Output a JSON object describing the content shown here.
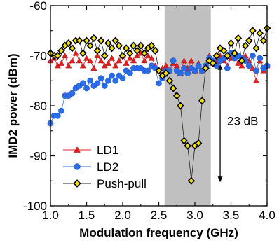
{
  "chart_data": {
    "type": "line",
    "xlabel": "Modulation frequency (GHz)",
    "ylabel": "IMD2 power (dBm)",
    "xlim": [
      1.0,
      4.0
    ],
    "ylim": [
      -100,
      -60
    ],
    "xticks": [
      "1.0",
      "1.5",
      "2.0",
      "2.5",
      "3.0",
      "3.5",
      "4.0"
    ],
    "xtick_values": [
      1.0,
      1.5,
      2.0,
      2.5,
      3.0,
      3.5,
      4.0
    ],
    "yticks": [
      "-60",
      "-70",
      "-80",
      "-90",
      "-100"
    ],
    "ytick_values": [
      -60,
      -70,
      -80,
      -90,
      -100
    ],
    "grid": false,
    "legend_position": "bottom-left",
    "shaded_region": {
      "x": [
        2.58,
        3.22
      ],
      "color": "#c0c0c0"
    },
    "annotation": {
      "text": "23 dB",
      "x": 3.35,
      "y_top": -72,
      "y_bottom": -95
    },
    "series": [
      {
        "name": "LD1",
        "color": "#e02020",
        "marker": "triangle",
        "x": [
          1.0,
          1.05,
          1.1,
          1.15,
          1.2,
          1.25,
          1.3,
          1.35,
          1.4,
          1.45,
          1.5,
          1.55,
          1.6,
          1.65,
          1.7,
          1.75,
          1.8,
          1.85,
          1.9,
          1.95,
          2.0,
          2.05,
          2.1,
          2.15,
          2.2,
          2.25,
          2.3,
          2.35,
          2.4,
          2.45,
          2.5,
          2.55,
          2.6,
          2.65,
          2.7,
          2.75,
          2.8,
          2.85,
          2.9,
          2.95,
          3.0,
          3.05,
          3.1,
          3.15,
          3.2,
          3.25,
          3.3,
          3.35,
          3.4,
          3.45,
          3.5,
          3.55,
          3.6,
          3.65,
          3.7,
          3.75,
          3.8,
          3.85,
          3.9,
          3.95,
          4.0
        ],
        "y": [
          -71,
          -70.5,
          -72,
          -71.5,
          -70,
          -72,
          -71,
          -69.5,
          -71,
          -72,
          -70.5,
          -71,
          -72.5,
          -70,
          -71,
          -72,
          -71.5,
          -70.5,
          -72,
          -71,
          -70,
          -71.5,
          -70.5,
          -71,
          -70,
          -69.5,
          -71,
          -70,
          -70.5,
          -72,
          -73,
          -72.5,
          -72,
          -73,
          -71.5,
          -72,
          -73.5,
          -71,
          -72.5,
          -71,
          -73,
          -71.5,
          -73,
          -72,
          -70,
          -71.5,
          -71,
          -70,
          -71,
          -72,
          -70.5,
          -70,
          -71.5,
          -72,
          -70,
          -71,
          -72.5,
          -75,
          -71,
          -73,
          -72
        ]
      },
      {
        "name": "LD2",
        "color": "#2a6be8",
        "marker": "circle",
        "x": [
          1.0,
          1.05,
          1.1,
          1.15,
          1.2,
          1.25,
          1.3,
          1.35,
          1.4,
          1.45,
          1.5,
          1.55,
          1.6,
          1.65,
          1.7,
          1.75,
          1.8,
          1.85,
          1.9,
          1.95,
          2.0,
          2.05,
          2.1,
          2.15,
          2.2,
          2.25,
          2.3,
          2.35,
          2.4,
          2.45,
          2.5,
          2.55,
          2.6,
          2.65,
          2.7,
          2.75,
          2.8,
          2.85,
          2.9,
          2.95,
          3.0,
          3.05,
          3.1,
          3.15,
          3.2,
          3.25,
          3.3,
          3.35,
          3.4,
          3.45,
          3.5,
          3.55,
          3.6,
          3.65,
          3.7,
          3.75,
          3.8,
          3.85,
          3.9,
          3.95,
          4.0
        ],
        "y": [
          -83.5,
          -82,
          -82,
          -81,
          -78,
          -78,
          -77.5,
          -76.5,
          -76,
          -75.5,
          -76.5,
          -75,
          -76,
          -75.5,
          -74.5,
          -76,
          -75,
          -74,
          -75,
          -74,
          -74.5,
          -73,
          -73.5,
          -72.5,
          -72.5,
          -72.5,
          -73,
          -73,
          -72,
          -72.5,
          -75.5,
          -74.5,
          -73,
          -73,
          -71,
          -73,
          -73.5,
          -72.5,
          -73.5,
          -72.5,
          -73,
          -72,
          -73,
          -72,
          -70.5,
          -71,
          -72,
          -71,
          -70.5,
          -72.5,
          -69.5,
          -70.5,
          -70,
          -70.5,
          -71,
          -72,
          -70,
          -73,
          -70.5,
          -72.5,
          -72
        ]
      },
      {
        "name": "Push-pull",
        "color": "#222222",
        "marker": "diamond",
        "x": [
          1.0,
          1.05,
          1.1,
          1.15,
          1.2,
          1.25,
          1.3,
          1.35,
          1.4,
          1.45,
          1.5,
          1.55,
          1.6,
          1.65,
          1.7,
          1.75,
          1.8,
          1.85,
          1.9,
          1.95,
          2.0,
          2.05,
          2.1,
          2.15,
          2.2,
          2.25,
          2.3,
          2.35,
          2.4,
          2.45,
          2.5,
          2.55,
          2.6,
          2.65,
          2.7,
          2.75,
          2.8,
          2.85,
          2.9,
          2.95,
          3.0,
          3.05,
          3.1,
          3.15,
          3.2,
          3.25,
          3.3,
          3.35,
          3.4,
          3.45,
          3.5,
          3.55,
          3.6,
          3.65,
          3.7,
          3.75,
          3.8,
          3.85,
          3.9,
          3.95,
          4.0
        ],
        "y": [
          -69.5,
          -70,
          -70,
          -69,
          -68,
          -67.5,
          -68.5,
          -67,
          -67,
          -69.5,
          -67,
          -68,
          -66.5,
          -69,
          -67,
          -70,
          -67.5,
          -68.5,
          -67,
          -68,
          -70,
          -68.5,
          -69.5,
          -68,
          -69,
          -68,
          -69.5,
          -68.5,
          -68,
          -69,
          -73,
          -74,
          -73.5,
          -75,
          -76.5,
          -78,
          -80,
          -87,
          -88,
          -95,
          -88,
          -87.5,
          -79,
          -72.5,
          -71,
          -71.5,
          -70,
          -68.5,
          -69,
          -70,
          -67.5,
          -69.5,
          -66.5,
          -71,
          -68,
          -67,
          -65,
          -68.5,
          -65.5,
          -67,
          -64.5
        ]
      }
    ]
  }
}
